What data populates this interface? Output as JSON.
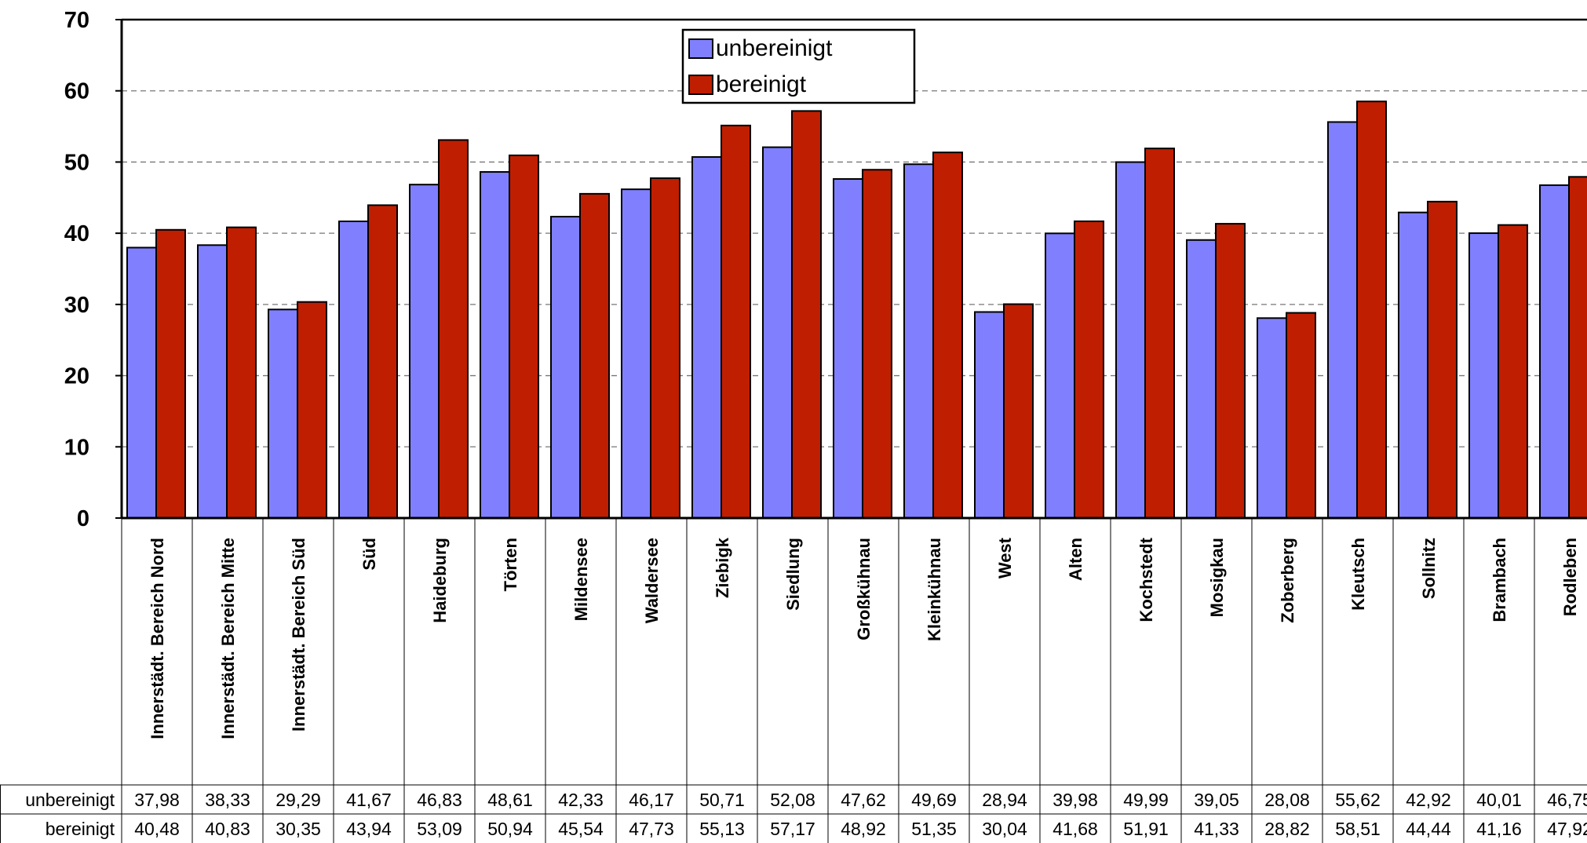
{
  "chart_data": {
    "type": "bar",
    "categories": [
      "Innerstädt. Bereich Nord",
      "Innerstädt. Bereich Mitte",
      "Innerstädt. Bereich Süd",
      "Süd",
      "Haideburg",
      "Törten",
      "Mildensee",
      "Waldersee",
      "Ziebigk",
      "Siedlung",
      "Großkühnau",
      "Kleinkühnau",
      "West",
      "Alten",
      "Kochstedt",
      "Mosigkau",
      "Zoberberg",
      "Kleutsch",
      "Sollnitz",
      "Brambach",
      "Rodleben"
    ],
    "series": [
      {
        "name": "unbereinigt",
        "color": "#8080ff",
        "values": [
          37.98,
          38.33,
          29.29,
          41.67,
          46.83,
          48.61,
          42.33,
          46.17,
          50.71,
          52.08,
          47.62,
          49.69,
          28.94,
          39.98,
          49.99,
          39.05,
          28.08,
          55.62,
          42.92,
          40.01,
          46.75
        ],
        "labels": [
          "37,98",
          "38,33",
          "29,29",
          "41,67",
          "46,83",
          "48,61",
          "42,33",
          "46,17",
          "50,71",
          "52,08",
          "47,62",
          "49,69",
          "28,94",
          "39,98",
          "49,99",
          "39,05",
          "28,08",
          "55,62",
          "42,92",
          "40,01",
          "46,75"
        ]
      },
      {
        "name": "bereinigt",
        "color": "#c01e00",
        "values": [
          40.48,
          40.83,
          30.35,
          43.94,
          53.09,
          50.94,
          45.54,
          47.73,
          55.13,
          57.17,
          48.92,
          51.35,
          30.04,
          41.68,
          51.91,
          41.33,
          28.82,
          58.51,
          44.44,
          41.16,
          47.92
        ],
        "labels": [
          "40,48",
          "40,83",
          "30,35",
          "43,94",
          "53,09",
          "50,94",
          "45,54",
          "47,73",
          "55,13",
          "57,17",
          "48,92",
          "51,35",
          "30,04",
          "41,68",
          "51,91",
          "41,33",
          "28,82",
          "58,51",
          "44,44",
          "41,16",
          "47,92"
        ]
      }
    ],
    "ylim": [
      0,
      70
    ],
    "yticks": [
      "0",
      "10",
      "20",
      "30",
      "40",
      "50",
      "60",
      "70"
    ],
    "ytick_values": [
      0,
      10,
      20,
      30,
      40,
      50,
      60,
      70
    ],
    "grid": "horizontal dashed",
    "legend": "top-center",
    "data_table": true
  }
}
